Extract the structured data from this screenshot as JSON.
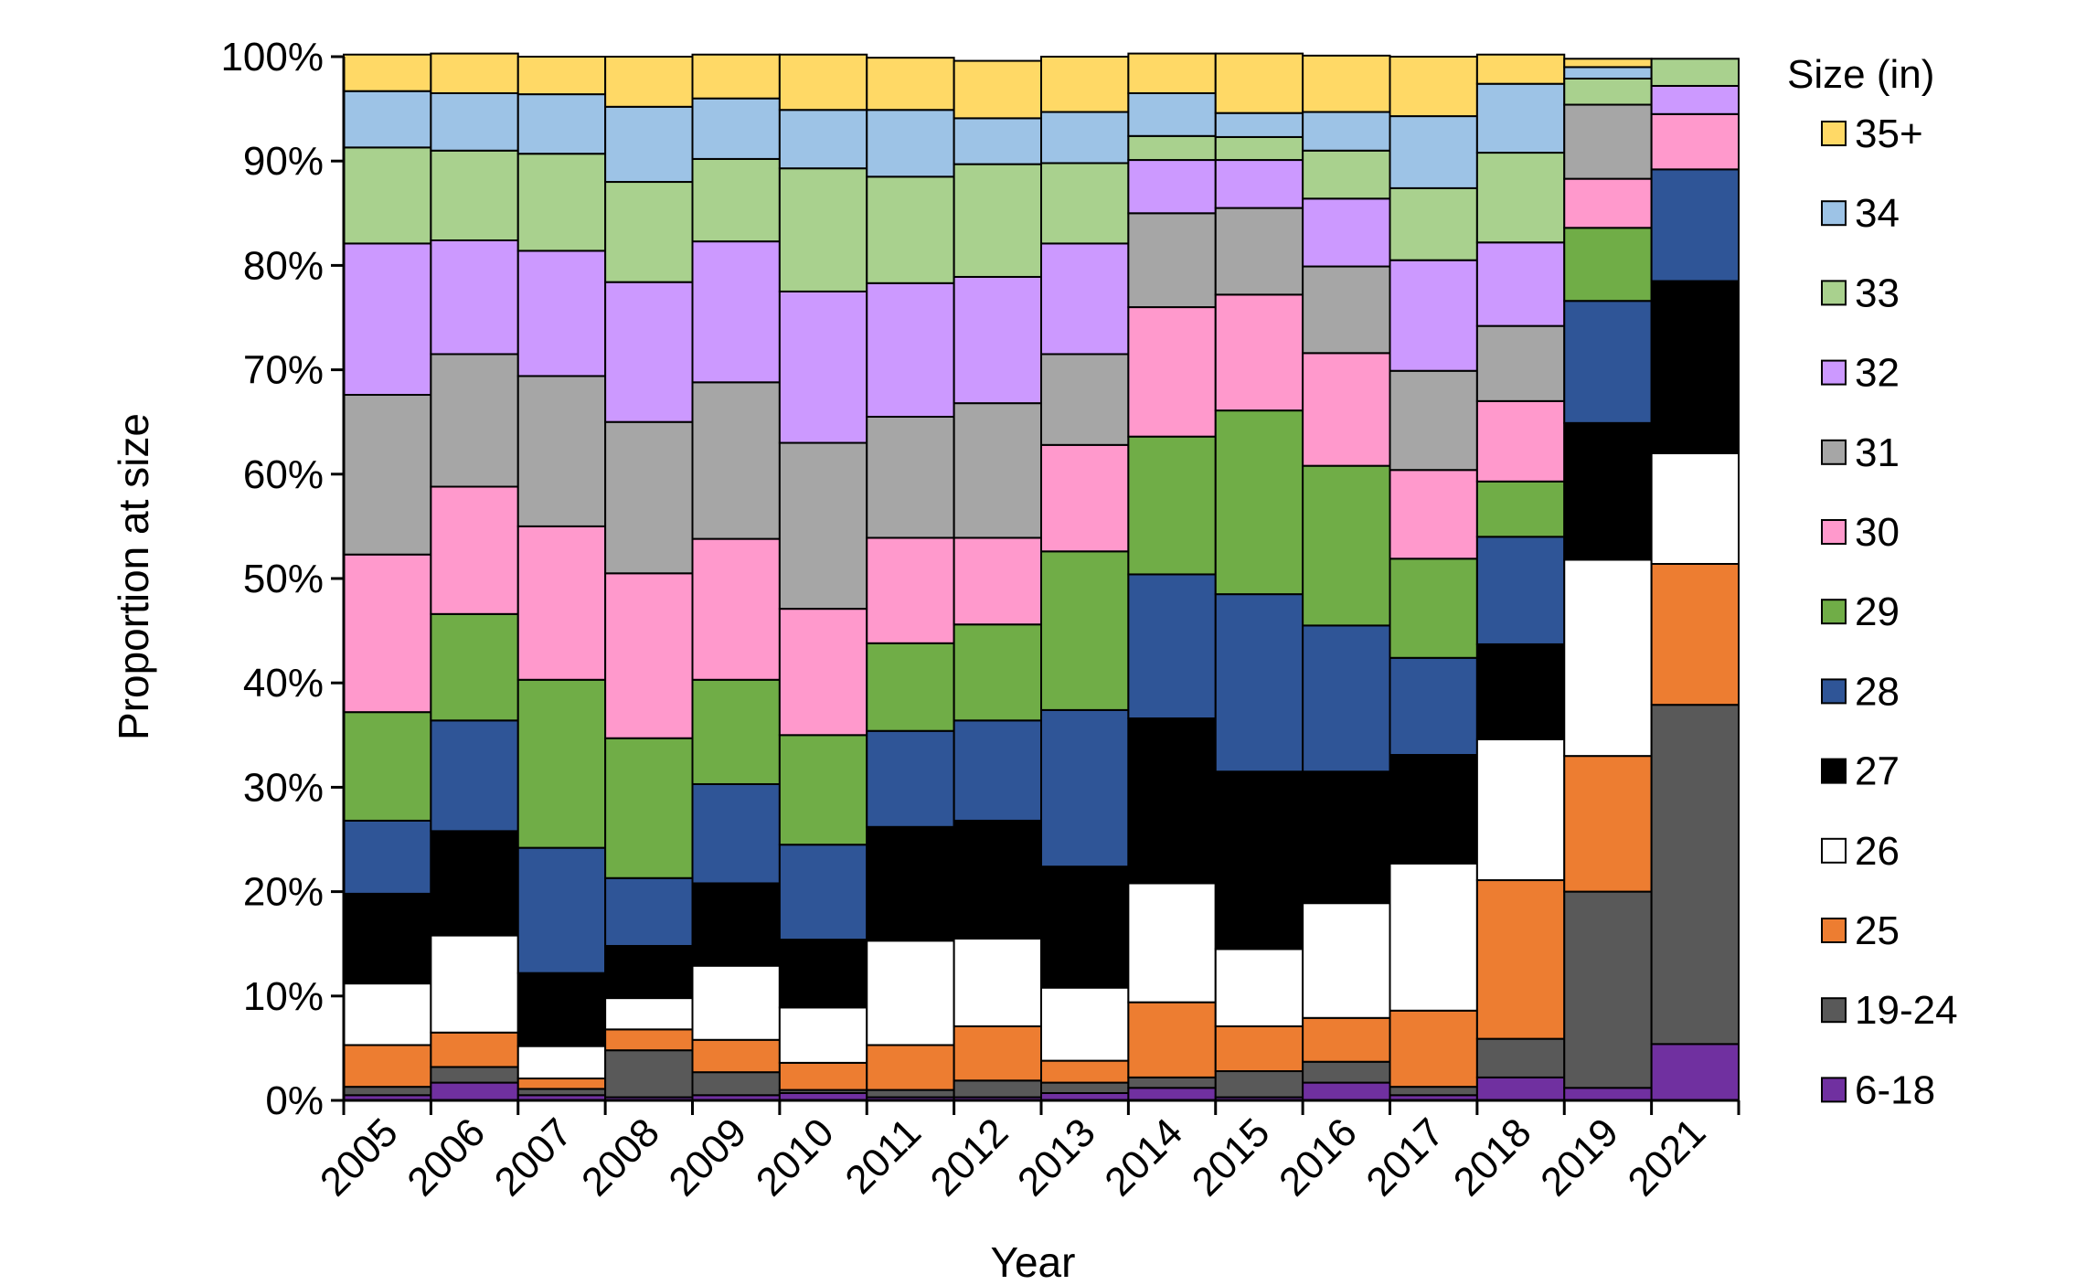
{
  "chart_data": {
    "type": "bar",
    "stacked": true,
    "percent": true,
    "title": "",
    "xlabel": "Year",
    "ylabel": "Proportion at size",
    "ylim": [
      0,
      100
    ],
    "y_ticks": [
      "0%",
      "10%",
      "20%",
      "30%",
      "40%",
      "50%",
      "60%",
      "70%",
      "80%",
      "90%",
      "100%"
    ],
    "categories": [
      "2005",
      "2006",
      "2007",
      "2008",
      "2009",
      "2010",
      "2011",
      "2012",
      "2013",
      "2014",
      "2015",
      "2016",
      "2017",
      "2018",
      "2019",
      "2021"
    ],
    "legend_title": "Size (in)",
    "legend_position": "right",
    "series": [
      {
        "name": "6-18",
        "color": "#7030a0",
        "values": [
          0.5,
          1.7,
          0.5,
          0.3,
          0.5,
          0.7,
          0.3,
          0.3,
          0.7,
          1.2,
          0.3,
          1.7,
          0.5,
          2.2,
          1.2,
          5.4
        ]
      },
      {
        "name": "19-24",
        "color": "#595959",
        "values": [
          0.8,
          1.5,
          0.6,
          4.5,
          2.2,
          0.3,
          0.7,
          1.6,
          1.0,
          1.0,
          2.5,
          2.0,
          0.8,
          3.7,
          18.8,
          32.5
        ]
      },
      {
        "name": "25",
        "color": "#ed7d31",
        "values": [
          4.0,
          3.3,
          1.0,
          2.0,
          3.1,
          2.6,
          4.3,
          5.2,
          2.1,
          7.2,
          4.3,
          4.2,
          7.3,
          15.2,
          13.0,
          13.5
        ]
      },
      {
        "name": "26",
        "color": "#ffffff",
        "values": [
          5.9,
          9.3,
          3.1,
          3.0,
          7.1,
          5.3,
          10.0,
          8.4,
          7.0,
          11.4,
          7.4,
          11.0,
          14.1,
          13.5,
          18.8,
          10.6
        ]
      },
      {
        "name": "27",
        "color": "#000000",
        "values": [
          8.6,
          10.0,
          7.0,
          5.0,
          7.9,
          6.5,
          10.9,
          11.3,
          11.6,
          15.8,
          17.0,
          12.6,
          10.4,
          9.1,
          13.1,
          16.5
        ]
      },
      {
        "name": "28",
        "color": "#2f5597",
        "values": [
          7.0,
          10.6,
          12.0,
          6.5,
          9.5,
          9.1,
          9.2,
          9.6,
          15.0,
          13.8,
          17.0,
          14.0,
          9.3,
          10.3,
          11.7,
          10.7
        ]
      },
      {
        "name": "29",
        "color": "#70ad47",
        "values": [
          10.4,
          10.2,
          16.1,
          13.4,
          10.0,
          10.5,
          8.4,
          9.2,
          15.2,
          13.2,
          17.6,
          15.3,
          9.5,
          5.3,
          7.0,
          0
        ]
      },
      {
        "name": "30",
        "color": "#ff99cc",
        "values": [
          15.1,
          12.2,
          14.7,
          15.8,
          13.5,
          12.1,
          10.1,
          8.3,
          10.2,
          12.4,
          11.1,
          10.8,
          8.5,
          7.7,
          4.7,
          5.3
        ]
      },
      {
        "name": "31",
        "color": "#a6a6a6",
        "values": [
          15.3,
          12.7,
          14.4,
          14.5,
          15.0,
          15.9,
          11.6,
          12.9,
          8.7,
          9.0,
          8.3,
          8.3,
          9.5,
          7.2,
          7.1,
          0
        ]
      },
      {
        "name": "32",
        "color": "#cc99ff",
        "values": [
          14.5,
          10.9,
          12.0,
          13.4,
          13.5,
          14.5,
          12.8,
          12.1,
          10.6,
          5.1,
          4.6,
          6.5,
          10.6,
          8.0,
          0,
          2.7
        ]
      },
      {
        "name": "33",
        "color": "#a9d18e",
        "values": [
          9.2,
          8.6,
          9.3,
          9.6,
          7.9,
          11.8,
          10.2,
          10.8,
          7.7,
          2.3,
          2.2,
          4.6,
          6.9,
          8.6,
          2.5,
          2.6
        ]
      },
      {
        "name": "34",
        "color": "#9dc3e6",
        "values": [
          5.4,
          5.5,
          5.7,
          7.2,
          5.8,
          5.6,
          6.4,
          4.4,
          4.9,
          4.1,
          2.3,
          3.7,
          6.9,
          6.6,
          1.1,
          0
        ]
      },
      {
        "name": "35+",
        "color": "#ffd966",
        "values": [
          3.5,
          3.8,
          3.6,
          4.8,
          4.2,
          5.3,
          5.0,
          5.5,
          5.3,
          3.8,
          5.7,
          5.4,
          5.7,
          2.8,
          0.8,
          0
        ]
      }
    ]
  }
}
